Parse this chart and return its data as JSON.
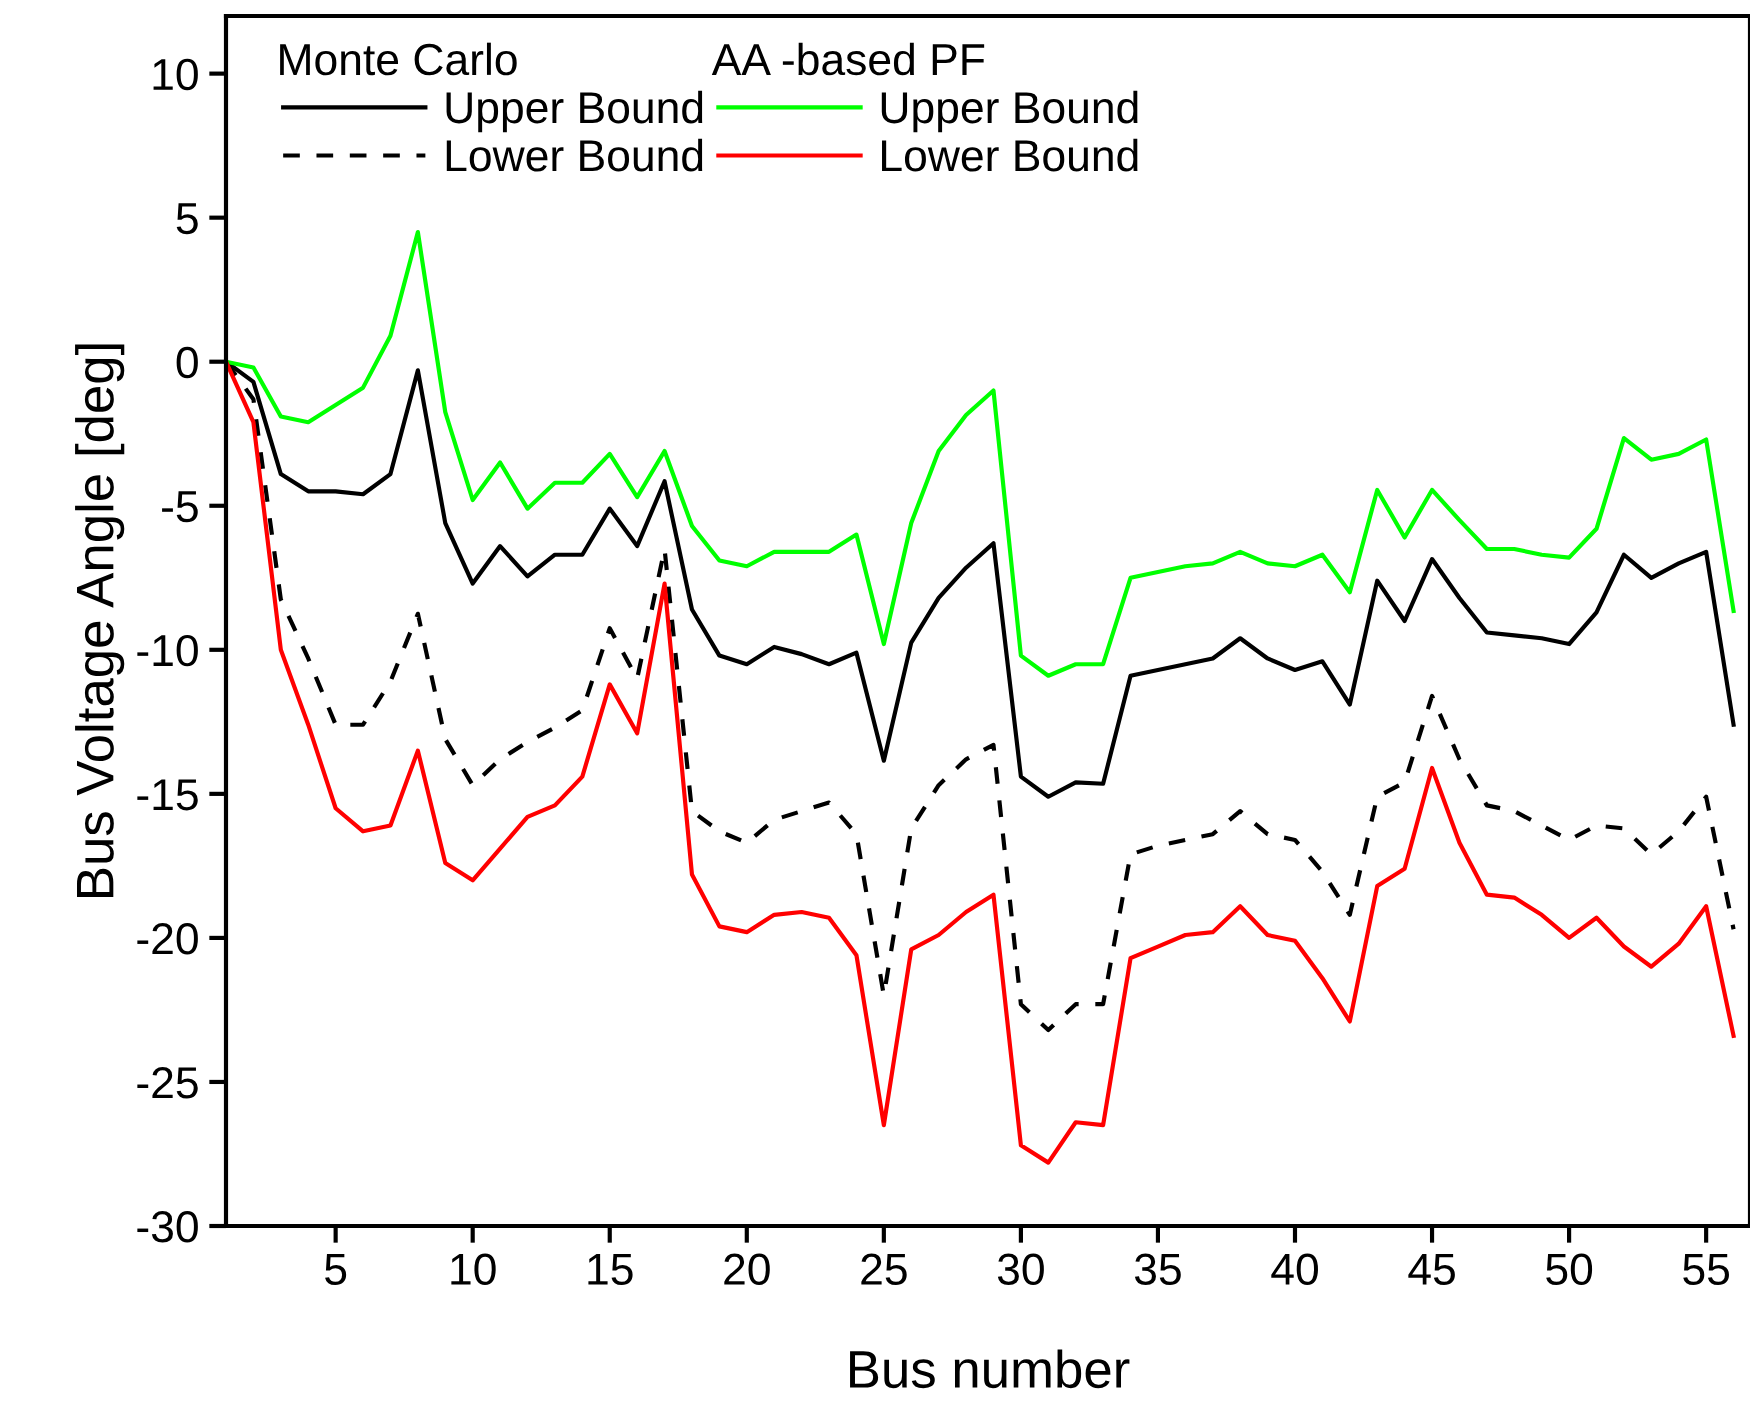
{
  "chart_data": {
    "type": "line",
    "xlabel": "Bus number",
    "ylabel": "Bus Voltage Angle [deg]",
    "x": [
      1,
      2,
      3,
      4,
      5,
      6,
      7,
      8,
      9,
      10,
      11,
      12,
      13,
      14,
      15,
      16,
      17,
      18,
      19,
      20,
      21,
      22,
      23,
      24,
      25,
      26,
      27,
      28,
      29,
      30,
      31,
      32,
      33,
      34,
      35,
      36,
      37,
      38,
      39,
      40,
      41,
      42,
      43,
      44,
      45,
      46,
      47,
      48,
      49,
      50,
      51,
      52,
      53,
      54,
      55,
      56
    ],
    "xlim": [
      1,
      56.6
    ],
    "xticks": [
      5,
      10,
      15,
      20,
      25,
      30,
      35,
      40,
      45,
      50,
      55
    ],
    "ylim": [
      -30,
      12
    ],
    "yticks": [
      -30,
      -25,
      -20,
      -15,
      -10,
      -5,
      0,
      5,
      10
    ],
    "grid": false,
    "legend": "top left",
    "marker": "none",
    "annotations": [
      "Monte Carlo",
      "AA -based PF"
    ],
    "series": [
      {
        "name": "Upper Bound",
        "color": "#000000",
        "line_style": "solid",
        "values": [
          0,
          -0.7,
          -3.9,
          -4.5,
          -4.5,
          -4.6,
          -3.9,
          -0.3,
          -5.6,
          -7.7,
          -6.4,
          -7.45,
          -6.7,
          -6.7,
          -5.1,
          -6.4,
          -4.15,
          -8.6,
          -10.2,
          -10.5,
          -9.9,
          -10.15,
          -10.5,
          -10.1,
          -13.85,
          -9.75,
          -8.2,
          -7.15,
          -6.3,
          -14.4,
          -15.1,
          -14.6,
          -14.65,
          -10.9,
          -10.7,
          -10.5,
          -10.3,
          -9.6,
          -10.3,
          -10.7,
          -10.4,
          -11.9,
          -7.6,
          -9.0,
          -6.85,
          -8.2,
          -9.4,
          -9.5,
          -9.6,
          -9.8,
          -8.7,
          -6.7,
          -7.5,
          -7.0,
          -6.6,
          -12.6
        ]
      },
      {
        "name": "Lower Bound",
        "color": "#000000",
        "line_style": "dashed",
        "values": [
          0,
          -1.3,
          -8.25,
          -10.3,
          -12.6,
          -12.6,
          -11.1,
          -8.75,
          -13.1,
          -14.7,
          -13.8,
          -13.2,
          -12.7,
          -12.1,
          -9.25,
          -11.0,
          -6.5,
          -15.6,
          -16.3,
          -16.7,
          -15.9,
          -15.6,
          -15.3,
          -16.4,
          -22.0,
          -16.2,
          -14.7,
          -13.8,
          -13.3,
          -22.3,
          -23.2,
          -22.3,
          -22.3,
          -17.1,
          -16.8,
          -16.6,
          -16.4,
          -15.6,
          -16.4,
          -16.6,
          -17.7,
          -19.2,
          -15.1,
          -14.6,
          -11.6,
          -13.8,
          -15.4,
          -15.6,
          -16.1,
          -16.6,
          -16.1,
          -16.2,
          -17.1,
          -16.3,
          -15.1,
          -19.7
        ]
      },
      {
        "name": "Upper Bound",
        "color": "#00ff00",
        "line_style": "solid",
        "values": [
          0,
          -0.2,
          -1.9,
          -2.1,
          -1.5,
          -0.9,
          0.9,
          4.5,
          -1.75,
          -4.8,
          -3.5,
          -5.1,
          -4.2,
          -4.2,
          -3.2,
          -4.7,
          -3.1,
          -5.7,
          -6.9,
          -7.1,
          -6.6,
          -6.6,
          -6.6,
          -6.0,
          -9.8,
          -5.6,
          -3.1,
          -1.85,
          -1.0,
          -10.2,
          -10.9,
          -10.5,
          -10.5,
          -7.5,
          -7.3,
          -7.1,
          -7.0,
          -6.6,
          -7.0,
          -7.1,
          -6.7,
          -8.0,
          -4.45,
          -6.1,
          -4.45,
          -5.5,
          -6.5,
          -6.5,
          -6.7,
          -6.8,
          -5.8,
          -2.65,
          -3.4,
          -3.2,
          -2.7,
          -8.65
        ]
      },
      {
        "name": "Lower Bound",
        "color": "#ff0000",
        "line_style": "solid",
        "values": [
          0,
          -2.1,
          -10.0,
          -12.6,
          -15.5,
          -16.3,
          -16.1,
          -13.5,
          -17.4,
          -18.0,
          -16.9,
          -15.8,
          -15.4,
          -14.4,
          -11.2,
          -12.9,
          -7.7,
          -17.8,
          -19.6,
          -19.8,
          -19.2,
          -19.1,
          -19.3,
          -20.6,
          -26.5,
          -20.4,
          -19.9,
          -19.1,
          -18.5,
          -27.2,
          -27.8,
          -26.4,
          -26.5,
          -20.7,
          -20.3,
          -19.9,
          -19.8,
          -18.9,
          -19.9,
          -20.1,
          -21.4,
          -22.9,
          -18.2,
          -17.6,
          -14.1,
          -16.7,
          -18.5,
          -18.6,
          -19.2,
          -20.0,
          -19.3,
          -20.3,
          -21.0,
          -20.2,
          -18.9,
          -23.4
        ]
      }
    ]
  }
}
